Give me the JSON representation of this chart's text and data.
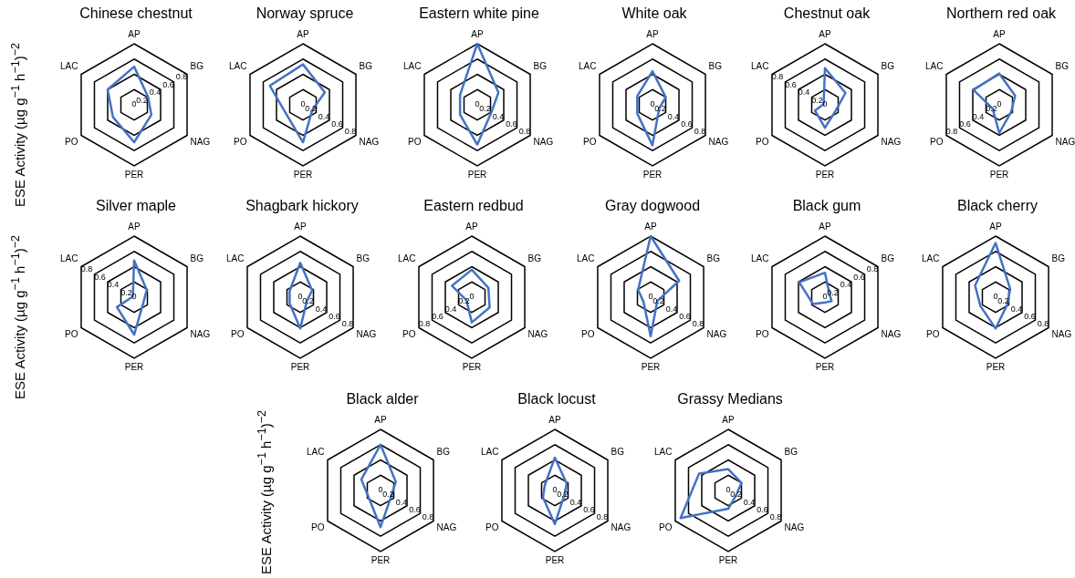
{
  "chart_data": [
    {
      "type": "radar",
      "title": "Chinese chestnut",
      "ylabel": "ESE Activity (µg g$^{−1}$ h$^{−1}$)$^{−2}$",
      "categories": [
        "AP",
        "BG",
        "NAG",
        "PER",
        "PO",
        "LAC"
      ],
      "series": [
        {
          "color": "#4472c4",
          "values": [
            0.5,
            0.21,
            0.26,
            0.49,
            0.32,
            0.4
          ]
        }
      ],
      "ylim": [
        0,
        0.8
      ],
      "yticks": [
        0,
        0.2,
        0.4,
        0.6,
        0.8
      ],
      "grid": true
    },
    {
      "type": "radar",
      "title": "Norway spruce",
      "categories": [
        "AP",
        "BG",
        "NAG",
        "PER",
        "PO",
        "LAC"
      ],
      "series": [
        {
          "color": "#4472c4",
          "values": [
            0.53,
            0.33,
            0.14,
            0.49,
            0.25,
            0.5
          ]
        }
      ],
      "ylim": [
        0,
        0.8
      ],
      "yticks": [
        0,
        0.2,
        0.4,
        0.6,
        0.8
      ],
      "grid": true
    },
    {
      "type": "radar",
      "title": "Eastern white pine",
      "categories": [
        "AP",
        "BG",
        "NAG",
        "PER",
        "PO",
        "LAC"
      ],
      "series": [
        {
          "color": "#4472c4",
          "values": [
            0.8,
            0.32,
            0.21,
            0.52,
            0.26,
            0.26
          ]
        }
      ],
      "ylim": [
        0,
        0.8
      ],
      "yticks": [
        0,
        0.2,
        0.4,
        0.6,
        0.8
      ],
      "grid": true
    },
    {
      "type": "radar",
      "title": "White oak",
      "categories": [
        "AP",
        "BG",
        "NAG",
        "PER",
        "PO",
        "LAC"
      ],
      "series": [
        {
          "color": "#4472c4",
          "values": [
            0.44,
            0.2,
            0.1,
            0.53,
            0.23,
            0.23
          ]
        }
      ],
      "ylim": [
        0,
        0.8
      ],
      "yticks": [
        0,
        0.2,
        0.4,
        0.6,
        0.8
      ],
      "grid": true
    },
    {
      "type": "radar",
      "title": "Chestnut oak",
      "categories": [
        "AP",
        "BG",
        "NAG",
        "PER",
        "PO",
        "LAC"
      ],
      "series": [
        {
          "color": "#4472c4",
          "values": [
            0.48,
            0.31,
            0.16,
            0.3,
            0.15,
            0.02
          ]
        }
      ],
      "ylim": [
        0,
        0.8
      ],
      "yticks": [
        0,
        0.2,
        0.4,
        0.6,
        0.8
      ],
      "grid": true
    },
    {
      "type": "radar",
      "title": "Northern red oak",
      "categories": [
        "AP",
        "BG",
        "NAG",
        "PER",
        "PO",
        "LAC"
      ],
      "series": [
        {
          "color": "#4472c4",
          "values": [
            0.41,
            0.24,
            0.18,
            0.37,
            0.1,
            0.39
          ]
        }
      ],
      "ylim": [
        0,
        0.8
      ],
      "yticks": [
        0,
        0.2,
        0.4,
        0.6,
        0.8
      ],
      "grid": true
    },
    {
      "type": "radar",
      "title": "Silver maple",
      "ylabel": "ESE Activity (µg g$^{−1}$ h$^{−1}$)$^{−2}$",
      "categories": [
        "AP",
        "BG",
        "NAG",
        "PER",
        "PO",
        "LAC"
      ],
      "series": [
        {
          "color": "#4472c4",
          "values": [
            0.48,
            0.19,
            0.14,
            0.49,
            0.26,
            0.02
          ]
        }
      ],
      "ylim": [
        0,
        0.8
      ],
      "yticks": [
        0,
        0.2,
        0.4,
        0.6,
        0.8
      ],
      "grid": true
    },
    {
      "type": "radar",
      "title": "Shagbark hickory",
      "categories": [
        "AP",
        "BG",
        "NAG",
        "PER",
        "PO",
        "LAC"
      ],
      "series": [
        {
          "color": "#4472c4",
          "values": [
            0.45,
            0.18,
            0.1,
            0.41,
            0.16,
            0.16
          ]
        }
      ],
      "ylim": [
        0,
        0.8
      ],
      "yticks": [
        0,
        0.2,
        0.4,
        0.6,
        0.8
      ],
      "grid": true
    },
    {
      "type": "radar",
      "title": "Eastern redbud",
      "categories": [
        "AP",
        "BG",
        "NAG",
        "PER",
        "PO",
        "LAC"
      ],
      "series": [
        {
          "color": "#4472c4",
          "values": [
            0.36,
            0.25,
            0.27,
            0.33,
            0.08,
            0.3
          ]
        }
      ],
      "ylim": [
        0,
        0.8
      ],
      "yticks": [
        0,
        0.2,
        0.4,
        0.6,
        0.8
      ],
      "grid": true
    },
    {
      "type": "radar",
      "title": "Gray dogwood",
      "categories": [
        "AP",
        "BG",
        "NAG",
        "PER",
        "PO",
        "LAC"
      ],
      "series": [
        {
          "color": "#4472c4",
          "values": [
            0.8,
            0.43,
            0.1,
            0.51,
            0.11,
            0.19
          ]
        }
      ],
      "ylim": [
        0,
        0.8
      ],
      "yticks": [
        0,
        0.2,
        0.4,
        0.6,
        0.8
      ],
      "grid": true
    },
    {
      "type": "radar",
      "title": "Black gum",
      "categories": [
        "AP",
        "BG",
        "NAG",
        "PER",
        "PO",
        "LAC"
      ],
      "series": [
        {
          "color": "#4472c4",
          "values": [
            0.32,
            0.07,
            0.1,
            0.07,
            0.18,
            0.39
          ]
        }
      ],
      "ylim": [
        0,
        0.8
      ],
      "yticks": [
        0,
        0.2,
        0.4,
        0.6,
        0.8
      ],
      "grid": true
    },
    {
      "type": "radar",
      "title": "Black cherry",
      "categories": [
        "AP",
        "BG",
        "NAG",
        "PER",
        "PO",
        "LAC"
      ],
      "series": [
        {
          "color": "#4472c4",
          "values": [
            0.71,
            0.22,
            0.18,
            0.41,
            0.23,
            0.31
          ]
        }
      ],
      "ylim": [
        0,
        0.8
      ],
      "yticks": [
        0,
        0.2,
        0.4,
        0.6,
        0.8
      ],
      "grid": true
    },
    {
      "type": "radar",
      "title": "Black alder",
      "ylabel": "ESE Activity (µg g$^{−1}$ h$^{−1}$)$^{−2}$",
      "categories": [
        "AP",
        "BG",
        "NAG",
        "PER",
        "PO",
        "LAC"
      ],
      "series": [
        {
          "color": "#4472c4",
          "values": [
            0.6,
            0.23,
            0.16,
            0.48,
            0.18,
            0.29
          ]
        }
      ],
      "ylim": [
        0,
        0.8
      ],
      "yticks": [
        0,
        0.2,
        0.4,
        0.6,
        0.8
      ],
      "grid": true
    },
    {
      "type": "radar",
      "title": "Black locust",
      "categories": [
        "AP",
        "BG",
        "NAG",
        "PER",
        "PO",
        "LAC"
      ],
      "series": [
        {
          "color": "#4472c4",
          "values": [
            0.43,
            0.18,
            0.14,
            0.44,
            0.18,
            0.15
          ]
        }
      ],
      "ylim": [
        0,
        0.8
      ],
      "yticks": [
        0,
        0.2,
        0.4,
        0.6,
        0.8
      ],
      "grid": true
    },
    {
      "type": "radar",
      "title": "Grassy Medians",
      "categories": [
        "AP",
        "BG",
        "NAG",
        "PER",
        "PO",
        "LAC"
      ],
      "series": [
        {
          "color": "#4472c4",
          "values": [
            0.28,
            0.2,
            0.12,
            0.24,
            0.72,
            0.44
          ]
        }
      ],
      "ylim": [
        0,
        0.8
      ],
      "yticks": [
        0,
        0.2,
        0.4,
        0.6,
        0.8
      ],
      "grid": true
    }
  ]
}
